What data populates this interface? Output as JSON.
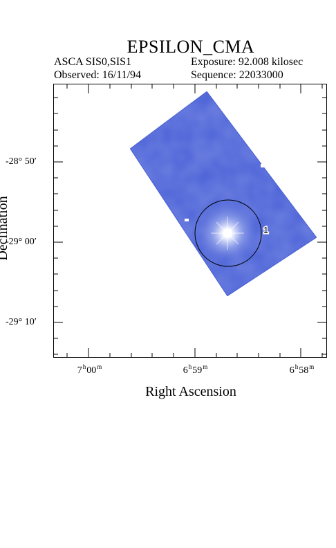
{
  "header": {
    "title": "EPSILON_CMA",
    "instrument": "ASCA SIS0,SIS1",
    "exposure": "Exposure: 92.008 kilosec",
    "observed": "Observed: 16/11/94",
    "sequence": "Sequence: 22033000"
  },
  "axes": {
    "x_label": "Right Ascension",
    "y_label": "Declination",
    "x_ticks": [
      {
        "hours": "7",
        "minutes": "00"
      },
      {
        "hours": "6",
        "minutes": "59"
      },
      {
        "hours": "6",
        "minutes": "58"
      }
    ],
    "y_ticks": [
      "-28° 50′",
      "-29° 00′",
      "-29° 10′"
    ]
  },
  "image": {
    "source_label": "1",
    "colors": {
      "exposure_field": "#4a61d6",
      "source_core": "#ffffff",
      "circle": "#000000"
    }
  }
}
